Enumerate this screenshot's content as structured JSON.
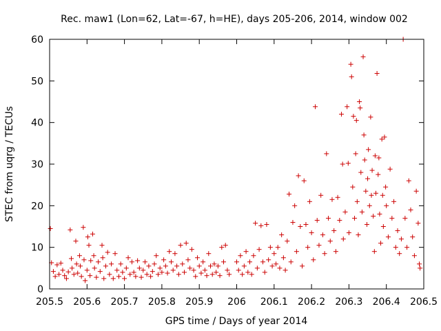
{
  "chart_data": {
    "type": "scatter",
    "title": "Rec. maw1 (Lon=62, Lat=-67, h=HE), days 205-206, 2014, window 002",
    "xlabel": "GPS time / Days of year 2014",
    "ylabel": "STEC from uqrg / TECUs",
    "xlim": [
      205.5,
      206.5
    ],
    "ylim": [
      0,
      60
    ],
    "xticks": [
      205.5,
      205.6,
      205.7,
      205.8,
      205.9,
      206,
      206.1,
      206.2,
      206.3,
      206.4,
      206.5
    ],
    "xtick_labels": [
      "205.5",
      "205.6",
      "205.7",
      "205.8",
      "205.9",
      "206",
      "206.1",
      "206.2",
      "206.3",
      "206.4",
      "206.5"
    ],
    "yticks": [
      0,
      10,
      20,
      30,
      40,
      50,
      60
    ],
    "ytick_labels": [
      "0",
      "10",
      "20",
      "30",
      "40",
      "50",
      "60"
    ],
    "marker_color": "#cc0000",
    "marker": "+",
    "points": [
      [
        205.502,
        14.5
      ],
      [
        205.505,
        6.3
      ],
      [
        205.51,
        4.2
      ],
      [
        205.515,
        3.0
      ],
      [
        205.52,
        5.8
      ],
      [
        205.525,
        3.5
      ],
      [
        205.53,
        6.2
      ],
      [
        205.535,
        4.5
      ],
      [
        205.54,
        3.2
      ],
      [
        205.545,
        2.5
      ],
      [
        205.55,
        4.1
      ],
      [
        205.555,
        14.2
      ],
      [
        205.558,
        7.3
      ],
      [
        205.56,
        5.0
      ],
      [
        205.565,
        3.5
      ],
      [
        205.57,
        11.5
      ],
      [
        205.572,
        6.0
      ],
      [
        205.575,
        3.8
      ],
      [
        205.58,
        8.0
      ],
      [
        205.582,
        5.5
      ],
      [
        205.585,
        3.0
      ],
      [
        205.59,
        14.8
      ],
      [
        205.592,
        7.0
      ],
      [
        205.595,
        2.0
      ],
      [
        205.6,
        4.5
      ],
      [
        205.602,
        12.5
      ],
      [
        205.605,
        10.5
      ],
      [
        205.608,
        3.2
      ],
      [
        205.61,
        6.8
      ],
      [
        205.615,
        13.2
      ],
      [
        205.618,
        8.0
      ],
      [
        205.62,
        5.0
      ],
      [
        205.625,
        2.8
      ],
      [
        205.63,
        6.5
      ],
      [
        205.635,
        4.2
      ],
      [
        205.64,
        10.5
      ],
      [
        205.642,
        7.5
      ],
      [
        205.645,
        2.5
      ],
      [
        205.65,
        5.5
      ],
      [
        205.655,
        8.8
      ],
      [
        205.66,
        3.5
      ],
      [
        205.665,
        6.0
      ],
      [
        205.67,
        2.5
      ],
      [
        205.675,
        8.5
      ],
      [
        205.68,
        4.5
      ],
      [
        205.685,
        3.0
      ],
      [
        205.69,
        6.0
      ],
      [
        205.695,
        4.0
      ],
      [
        205.7,
        2.5
      ],
      [
        205.705,
        5.0
      ],
      [
        205.71,
        7.5
      ],
      [
        205.715,
        3.5
      ],
      [
        205.72,
        6.5
      ],
      [
        205.725,
        4.0
      ],
      [
        205.73,
        3.0
      ],
      [
        205.735,
        6.8
      ],
      [
        205.74,
        5.0
      ],
      [
        205.745,
        2.8
      ],
      [
        205.75,
        4.5
      ],
      [
        205.755,
        6.5
      ],
      [
        205.76,
        3.5
      ],
      [
        205.765,
        5.5
      ],
      [
        205.77,
        3.0
      ],
      [
        205.775,
        4.2
      ],
      [
        205.78,
        6.0
      ],
      [
        205.785,
        8.0
      ],
      [
        205.79,
        3.5
      ],
      [
        205.795,
        5.0
      ],
      [
        205.8,
        4.0
      ],
      [
        205.805,
        7.0
      ],
      [
        205.81,
        5.5
      ],
      [
        205.815,
        3.8
      ],
      [
        205.82,
        9.0
      ],
      [
        205.825,
        6.5
      ],
      [
        205.83,
        4.5
      ],
      [
        205.835,
        8.5
      ],
      [
        205.84,
        5.5
      ],
      [
        205.845,
        3.5
      ],
      [
        205.85,
        10.5
      ],
      [
        205.855,
        6.0
      ],
      [
        205.86,
        4.0
      ],
      [
        205.865,
        11.0
      ],
      [
        205.87,
        7.0
      ],
      [
        205.875,
        5.0
      ],
      [
        205.88,
        9.5
      ],
      [
        205.885,
        4.5
      ],
      [
        205.89,
        3.0
      ],
      [
        205.895,
        7.5
      ],
      [
        205.9,
        5.5
      ],
      [
        205.905,
        3.8
      ],
      [
        205.91,
        6.5
      ],
      [
        205.915,
        4.5
      ],
      [
        205.92,
        3.2
      ],
      [
        205.925,
        8.5
      ],
      [
        205.93,
        5.5
      ],
      [
        205.935,
        3.5
      ],
      [
        205.94,
        6.0
      ],
      [
        205.945,
        4.0
      ],
      [
        205.95,
        5.5
      ],
      [
        205.955,
        3.2
      ],
      [
        205.96,
        10.0
      ],
      [
        205.965,
        6.5
      ],
      [
        205.97,
        10.5
      ],
      [
        205.975,
        4.5
      ],
      [
        205.98,
        3.5
      ],
      [
        206.0,
        6.5
      ],
      [
        206.005,
        4.5
      ],
      [
        206.01,
        8.0
      ],
      [
        206.015,
        3.5
      ],
      [
        206.02,
        5.5
      ],
      [
        206.025,
        9.0
      ],
      [
        206.03,
        4.0
      ],
      [
        206.035,
        6.5
      ],
      [
        206.04,
        3.5
      ],
      [
        206.045,
        8.0
      ],
      [
        206.05,
        15.8
      ],
      [
        206.055,
        5.0
      ],
      [
        206.06,
        9.5
      ],
      [
        206.065,
        15.2
      ],
      [
        206.07,
        6.5
      ],
      [
        206.075,
        4.0
      ],
      [
        206.08,
        15.5
      ],
      [
        206.085,
        7.0
      ],
      [
        206.09,
        10.0
      ],
      [
        206.095,
        5.5
      ],
      [
        206.1,
        8.5
      ],
      [
        206.105,
        6.0
      ],
      [
        206.11,
        10.0
      ],
      [
        206.115,
        5.0
      ],
      [
        206.12,
        13.0
      ],
      [
        206.125,
        7.5
      ],
      [
        206.13,
        4.5
      ],
      [
        206.135,
        11.5
      ],
      [
        206.14,
        22.8
      ],
      [
        206.145,
        6.5
      ],
      [
        206.15,
        16.0
      ],
      [
        206.155,
        20.0
      ],
      [
        206.16,
        9.0
      ],
      [
        206.165,
        27.2
      ],
      [
        206.17,
        15.0
      ],
      [
        206.175,
        5.5
      ],
      [
        206.18,
        26.0
      ],
      [
        206.185,
        15.5
      ],
      [
        206.19,
        10.0
      ],
      [
        206.195,
        21.0
      ],
      [
        206.2,
        13.5
      ],
      [
        206.205,
        7.0
      ],
      [
        206.21,
        43.8
      ],
      [
        206.215,
        16.5
      ],
      [
        206.22,
        10.5
      ],
      [
        206.225,
        22.5
      ],
      [
        206.23,
        13.0
      ],
      [
        206.235,
        8.5
      ],
      [
        206.24,
        32.5
      ],
      [
        206.245,
        17.0
      ],
      [
        206.25,
        11.5
      ],
      [
        206.255,
        21.5
      ],
      [
        206.26,
        14.0
      ],
      [
        206.265,
        9.0
      ],
      [
        206.27,
        22.0
      ],
      [
        206.275,
        16.5
      ],
      [
        206.28,
        42.0
      ],
      [
        206.283,
        30.0
      ],
      [
        206.285,
        12.0
      ],
      [
        206.29,
        18.5
      ],
      [
        206.295,
        43.8
      ],
      [
        206.298,
        30.2
      ],
      [
        206.3,
        13.5
      ],
      [
        206.305,
        54.0
      ],
      [
        206.307,
        51.0
      ],
      [
        206.31,
        24.5
      ],
      [
        206.312,
        41.5
      ],
      [
        206.315,
        17.0
      ],
      [
        206.318,
        32.5
      ],
      [
        206.32,
        40.5
      ],
      [
        206.322,
        21.0
      ],
      [
        206.325,
        13.0
      ],
      [
        206.328,
        45.0
      ],
      [
        206.33,
        43.5
      ],
      [
        206.332,
        28.0
      ],
      [
        206.335,
        18.5
      ],
      [
        206.338,
        55.8
      ],
      [
        206.34,
        37.0
      ],
      [
        206.342,
        31.0
      ],
      [
        206.345,
        23.5
      ],
      [
        206.348,
        15.5
      ],
      [
        206.35,
        26.5
      ],
      [
        206.352,
        33.5
      ],
      [
        206.355,
        20.0
      ],
      [
        206.358,
        41.3
      ],
      [
        206.36,
        22.5
      ],
      [
        206.362,
        28.5
      ],
      [
        206.365,
        17.5
      ],
      [
        206.368,
        9.0
      ],
      [
        206.37,
        32.0
      ],
      [
        206.372,
        23.0
      ],
      [
        206.375,
        51.8
      ],
      [
        206.378,
        27.5
      ],
      [
        206.38,
        31.5
      ],
      [
        206.382,
        18.0
      ],
      [
        206.385,
        11.0
      ],
      [
        206.388,
        36.0
      ],
      [
        206.39,
        22.5
      ],
      [
        206.392,
        15.0
      ],
      [
        206.395,
        36.5
      ],
      [
        206.398,
        24.5
      ],
      [
        206.4,
        20.0
      ],
      [
        206.405,
        12.5
      ],
      [
        206.41,
        28.8
      ],
      [
        206.415,
        17.0
      ],
      [
        206.42,
        21.0
      ],
      [
        206.425,
        10.0
      ],
      [
        206.43,
        14.0
      ],
      [
        206.435,
        8.5
      ],
      [
        206.44,
        12.0
      ],
      [
        206.445,
        60.0
      ],
      [
        206.45,
        17.0
      ],
      [
        206.455,
        10.0
      ],
      [
        206.46,
        26.0
      ],
      [
        206.465,
        19.0
      ],
      [
        206.47,
        12.5
      ],
      [
        206.475,
        8.0
      ],
      [
        206.48,
        23.5
      ],
      [
        206.485,
        15.8
      ],
      [
        206.488,
        6.0
      ],
      [
        206.49,
        5.0
      ]
    ]
  }
}
